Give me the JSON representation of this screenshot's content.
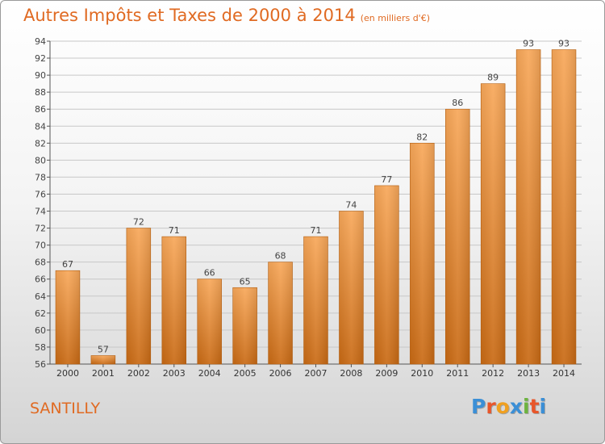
{
  "chart_data": {
    "type": "bar",
    "title": "Autres Impôts et Taxes de 2000 à 2014",
    "subtitle": "(en milliers d'€)",
    "categories": [
      "2000",
      "2001",
      "2002",
      "2003",
      "2004",
      "2005",
      "2006",
      "2007",
      "2008",
      "2009",
      "2010",
      "2011",
      "2012",
      "2013",
      "2014"
    ],
    "values": [
      67,
      57,
      72,
      71,
      66,
      65,
      68,
      71,
      74,
      77,
      82,
      86,
      89,
      93,
      93
    ],
    "ylim": [
      56,
      94
    ],
    "yticks": [
      56,
      58,
      60,
      62,
      64,
      66,
      68,
      70,
      72,
      74,
      76,
      78,
      80,
      82,
      84,
      86,
      88,
      90,
      92,
      94
    ],
    "grid": true,
    "bar_color": "#f08a2e",
    "bar_color_light": "#f8a85a",
    "bar_color_dark": "#c96a14"
  },
  "footer": {
    "city": "SANTILLY",
    "logo_letters": [
      "P",
      "r",
      "o",
      "x",
      "i",
      "t",
      "i"
    ],
    "logo_colors": [
      "#3b8fd6",
      "#e8562a",
      "#f0a020",
      "#3b8fd6",
      "#6db33f",
      "#e8562a",
      "#3b8fd6"
    ]
  }
}
